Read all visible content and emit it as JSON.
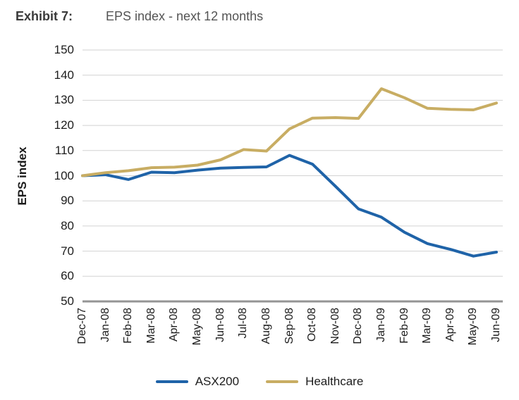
{
  "header": {
    "exhibit_label": "Exhibit 7:",
    "title": "EPS index - next 12 months"
  },
  "chart_data": {
    "type": "line",
    "title": "EPS index - next 12 months",
    "ylabel": "EPS index",
    "ylim": [
      50,
      150
    ],
    "yticks": [
      50,
      60,
      70,
      80,
      90,
      100,
      110,
      120,
      130,
      140,
      150
    ],
    "grid": true,
    "legend_position": "bottom",
    "x": [
      "Dec-07",
      "Jan-08",
      "Feb-08",
      "Mar-08",
      "Apr-08",
      "May-08",
      "Jun-08",
      "Jul-08",
      "Aug-08",
      "Sep-08",
      "Oct-08",
      "Nov-08",
      "Dec-08",
      "Jan-09",
      "Feb-09",
      "Mar-09",
      "Apr-09",
      "May-09",
      "Jun-09"
    ],
    "series": [
      {
        "name": "ASX200",
        "color": "#1f63a8",
        "values": [
          100,
          100.4,
          98.5,
          101.4,
          101.2,
          102.2,
          103,
          103.3,
          103.5,
          108.1,
          104.6,
          95.8,
          86.8,
          83.5,
          77.5,
          73,
          70.7,
          68,
          69.6
        ]
      },
      {
        "name": "Healthcare",
        "color": "#c8ad63",
        "values": [
          100,
          101.2,
          102,
          103.2,
          103.4,
          104.2,
          106.3,
          110.4,
          109.8,
          118.6,
          122.9,
          123.1,
          122.8,
          134.6,
          131,
          126.8,
          126.4,
          126.2,
          128.9
        ]
      }
    ]
  },
  "colors": {
    "gridline": "#d2d2d2",
    "axis_line": "#949494",
    "tick_text": "#1c1c1c"
  }
}
